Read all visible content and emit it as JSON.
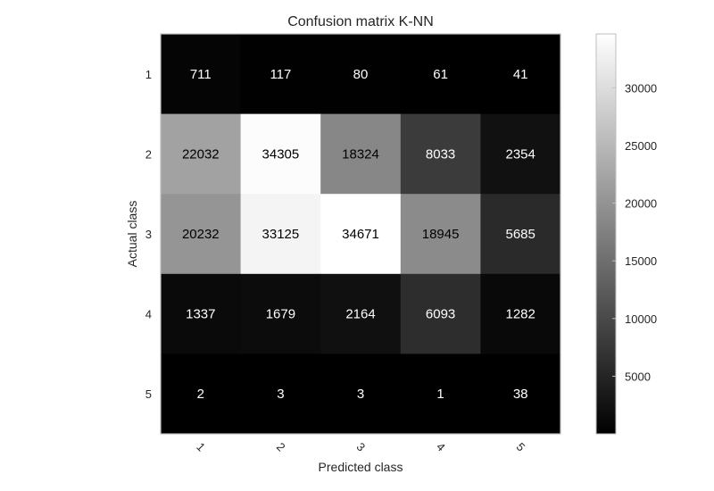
{
  "chart_data": {
    "type": "heatmap",
    "title": "Confusion matrix K-NN",
    "xlabel": "Predicted class",
    "ylabel": "Actual class",
    "x_categories": [
      "1",
      "2",
      "3",
      "4",
      "5"
    ],
    "y_categories": [
      "1",
      "2",
      "3",
      "4",
      "5"
    ],
    "values": [
      [
        711,
        117,
        80,
        61,
        41
      ],
      [
        22032,
        34305,
        18324,
        8033,
        2354
      ],
      [
        20232,
        33125,
        34671,
        18945,
        5685
      ],
      [
        1337,
        1679,
        2164,
        6093,
        1282
      ],
      [
        2,
        3,
        3,
        1,
        38
      ]
    ],
    "colormap": "gray",
    "color_min": 1,
    "color_max": 34671,
    "colorbar": {
      "ticks": [
        5000,
        10000,
        15000,
        20000,
        25000,
        30000
      ],
      "tick_labels": [
        "5000",
        "10000",
        "15000",
        "20000",
        "25000",
        "30000"
      ]
    },
    "grid": false,
    "x_tick_rotation_deg": 45
  }
}
